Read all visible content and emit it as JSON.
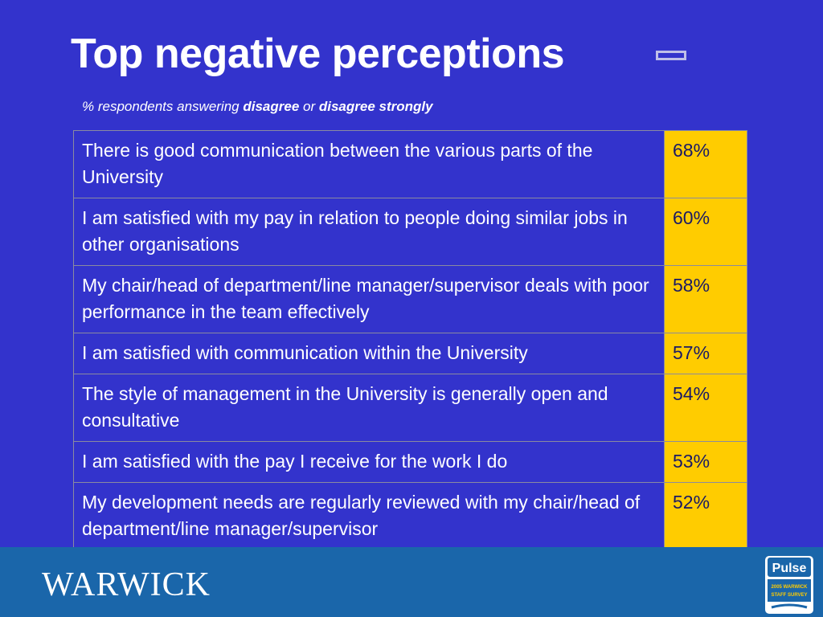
{
  "slide": {
    "title": "Top negative perceptions",
    "subtitle": {
      "prefix": "% respondents answering ",
      "emph1": "disagree",
      "middle": " or ",
      "emph2": "disagree strongly"
    }
  },
  "table": {
    "rows": [
      {
        "statement": "There is good communication between the various parts of the University",
        "percent": "68%"
      },
      {
        "statement": "I am satisfied with my pay in relation to people doing similar jobs in other organisations",
        "percent": "60%"
      },
      {
        "statement": "My chair/head of department/line manager/supervisor deals with poor performance in the team effectively",
        "percent": "58%"
      },
      {
        "statement": "I am satisfied with communication within the University",
        "percent": "57%"
      },
      {
        "statement": "The style of management in the University is generally open and consultative",
        "percent": "54%"
      },
      {
        "statement": "I am satisfied with the pay I receive for the work I do",
        "percent": "53%"
      },
      {
        "statement": "My development needs are regularly reviewed with my chair/head of department/line manager/supervisor",
        "percent": "52%"
      }
    ]
  },
  "footer": {
    "logo_text": "WARWICK",
    "pulse": {
      "name": "Pulse",
      "line1": "2005 WARWICK",
      "line2": "STAFF SURVEY"
    }
  },
  "colors": {
    "background": "#3333cc",
    "highlight": "#ffcc00",
    "footer": "#1a66aa"
  },
  "icons": [
    "minus-icon",
    "warwick-logo",
    "pulse-logo"
  ]
}
